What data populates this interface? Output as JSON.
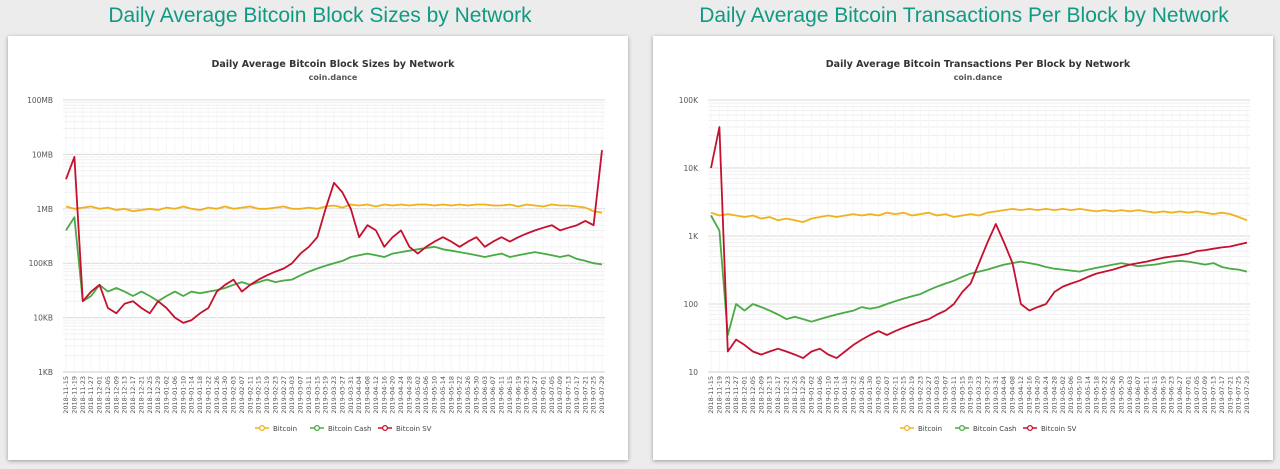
{
  "headings": [
    "Daily Average Bitcoin Block Sizes by Network",
    "Daily Average Bitcoin Transactions Per Block by Network"
  ],
  "dates": [
    "2018-11-15",
    "2018-11-19",
    "2018-11-23",
    "2018-11-27",
    "2018-12-01",
    "2018-12-05",
    "2018-12-09",
    "2018-12-13",
    "2018-12-17",
    "2018-12-21",
    "2018-12-25",
    "2018-12-29",
    "2019-01-02",
    "2019-01-06",
    "2019-01-10",
    "2019-01-14",
    "2019-01-18",
    "2019-01-22",
    "2019-01-26",
    "2019-01-30",
    "2019-02-03",
    "2019-02-07",
    "2019-02-11",
    "2019-02-15",
    "2019-02-19",
    "2019-02-23",
    "2019-02-27",
    "2019-03-03",
    "2019-03-07",
    "2019-03-11",
    "2019-03-15",
    "2019-03-19",
    "2019-03-23",
    "2019-03-27",
    "2019-03-31",
    "2019-04-04",
    "2019-04-08",
    "2019-04-12",
    "2019-04-16",
    "2019-04-20",
    "2019-04-24",
    "2019-04-28",
    "2019-05-02",
    "2019-05-06",
    "2019-05-10",
    "2019-05-14",
    "2019-05-18",
    "2019-05-22",
    "2019-05-26",
    "2019-05-30",
    "2019-06-03",
    "2019-06-07",
    "2019-06-11",
    "2019-06-15",
    "2019-06-19",
    "2019-06-23",
    "2019-06-27",
    "2019-07-01",
    "2019-07-05",
    "2019-07-09",
    "2019-07-13",
    "2019-07-17",
    "2019-07-21",
    "2019-07-25",
    "2019-07-29"
  ],
  "colors": {
    "Bitcoin": "#f0b21c",
    "Bitcoin Cash": "#4aaa44",
    "Bitcoin SV": "#c5102f"
  },
  "chart_data": [
    {
      "type": "line",
      "title": "Daily Average Bitcoin Block Sizes by Network",
      "subtitle": "coin.dance",
      "y_scale": "log",
      "ylim_bytes": [
        1000,
        100000000
      ],
      "yticks": [
        {
          "label": "1KB",
          "value": 1000
        },
        {
          "label": "10KB",
          "value": 10000
        },
        {
          "label": "100KB",
          "value": 100000
        },
        {
          "label": "1MB",
          "value": 1000000
        },
        {
          "label": "10MB",
          "value": 10000000
        },
        {
          "label": "100MB",
          "value": 100000000
        }
      ],
      "legend_position": "bottom",
      "series": [
        {
          "name": "Bitcoin",
          "values": [
            1100000,
            1000000,
            1050000,
            1100000,
            1000000,
            1050000,
            950000,
            1000000,
            900000,
            950000,
            1000000,
            950000,
            1050000,
            1000000,
            1100000,
            1000000,
            950000,
            1050000,
            1000000,
            1100000,
            1000000,
            1050000,
            1100000,
            1000000,
            1000000,
            1050000,
            1100000,
            1000000,
            1000000,
            1050000,
            1000000,
            1100000,
            1150000,
            1050000,
            1200000,
            1150000,
            1200000,
            1100000,
            1200000,
            1150000,
            1200000,
            1150000,
            1200000,
            1200000,
            1150000,
            1200000,
            1150000,
            1200000,
            1150000,
            1200000,
            1200000,
            1150000,
            1150000,
            1200000,
            1100000,
            1200000,
            1150000,
            1100000,
            1200000,
            1150000,
            1150000,
            1100000,
            1050000,
            900000,
            850000
          ]
        },
        {
          "name": "Bitcoin Cash",
          "values": [
            400000,
            700000,
            20000,
            25000,
            40000,
            30000,
            35000,
            30000,
            25000,
            30000,
            25000,
            20000,
            25000,
            30000,
            25000,
            30000,
            28000,
            30000,
            32000,
            35000,
            40000,
            45000,
            40000,
            45000,
            50000,
            45000,
            48000,
            50000,
            60000,
            70000,
            80000,
            90000,
            100000,
            110000,
            130000,
            140000,
            150000,
            140000,
            130000,
            150000,
            160000,
            170000,
            180000,
            190000,
            200000,
            180000,
            170000,
            160000,
            150000,
            140000,
            130000,
            140000,
            150000,
            130000,
            140000,
            150000,
            160000,
            150000,
            140000,
            130000,
            140000,
            120000,
            110000,
            100000,
            95000
          ]
        },
        {
          "name": "Bitcoin SV",
          "values": [
            3500000,
            9000000,
            20000,
            30000,
            40000,
            15000,
            12000,
            18000,
            20000,
            15000,
            12000,
            20000,
            15000,
            10000,
            8000,
            9000,
            12000,
            15000,
            30000,
            40000,
            50000,
            30000,
            40000,
            50000,
            60000,
            70000,
            80000,
            100000,
            150000,
            200000,
            300000,
            1000000,
            3000000,
            2000000,
            1000000,
            300000,
            500000,
            400000,
            200000,
            300000,
            400000,
            200000,
            150000,
            200000,
            250000,
            300000,
            250000,
            200000,
            250000,
            300000,
            200000,
            250000,
            300000,
            250000,
            300000,
            350000,
            400000,
            450000,
            500000,
            400000,
            450000,
            500000,
            600000,
            500000,
            12000000
          ]
        }
      ]
    },
    {
      "type": "line",
      "title": "Daily Average Bitcoin Transactions Per Block by Network",
      "subtitle": "coin.dance",
      "y_scale": "log",
      "ylim": [
        10,
        100000
      ],
      "yticks": [
        {
          "label": "10",
          "value": 10
        },
        {
          "label": "100",
          "value": 100
        },
        {
          "label": "1K",
          "value": 1000
        },
        {
          "label": "10K",
          "value": 10000
        },
        {
          "label": "100K",
          "value": 100000
        }
      ],
      "legend_position": "bottom",
      "series": [
        {
          "name": "Bitcoin",
          "values": [
            2200,
            2000,
            2100,
            2000,
            1900,
            2000,
            1800,
            1900,
            1700,
            1800,
            1700,
            1600,
            1800,
            1900,
            2000,
            1900,
            2000,
            2100,
            2000,
            2100,
            2000,
            2200,
            2100,
            2200,
            2000,
            2100,
            2200,
            2000,
            2100,
            1900,
            2000,
            2100,
            2000,
            2200,
            2300,
            2400,
            2500,
            2400,
            2500,
            2400,
            2500,
            2400,
            2500,
            2400,
            2500,
            2400,
            2300,
            2400,
            2300,
            2400,
            2300,
            2400,
            2300,
            2200,
            2300,
            2200,
            2300,
            2200,
            2300,
            2200,
            2100,
            2200,
            2100,
            1900,
            1700
          ]
        },
        {
          "name": "Bitcoin Cash",
          "values": [
            2000,
            1200,
            35,
            100,
            80,
            100,
            90,
            80,
            70,
            60,
            65,
            60,
            55,
            60,
            65,
            70,
            75,
            80,
            90,
            85,
            90,
            100,
            110,
            120,
            130,
            140,
            160,
            180,
            200,
            220,
            250,
            280,
            300,
            320,
            350,
            380,
            400,
            420,
            400,
            380,
            350,
            330,
            320,
            310,
            300,
            320,
            340,
            360,
            380,
            400,
            380,
            360,
            370,
            380,
            400,
            420,
            430,
            420,
            400,
            380,
            400,
            350,
            330,
            320,
            300
          ]
        },
        {
          "name": "Bitcoin SV",
          "values": [
            10000,
            40000,
            20,
            30,
            25,
            20,
            18,
            20,
            22,
            20,
            18,
            16,
            20,
            22,
            18,
            16,
            20,
            25,
            30,
            35,
            40,
            35,
            40,
            45,
            50,
            55,
            60,
            70,
            80,
            100,
            150,
            200,
            400,
            800,
            1500,
            800,
            400,
            100,
            80,
            90,
            100,
            150,
            180,
            200,
            220,
            250,
            280,
            300,
            320,
            350,
            380,
            400,
            420,
            450,
            480,
            500,
            520,
            550,
            600,
            620,
            650,
            680,
            700,
            750,
            800
          ]
        }
      ]
    }
  ]
}
